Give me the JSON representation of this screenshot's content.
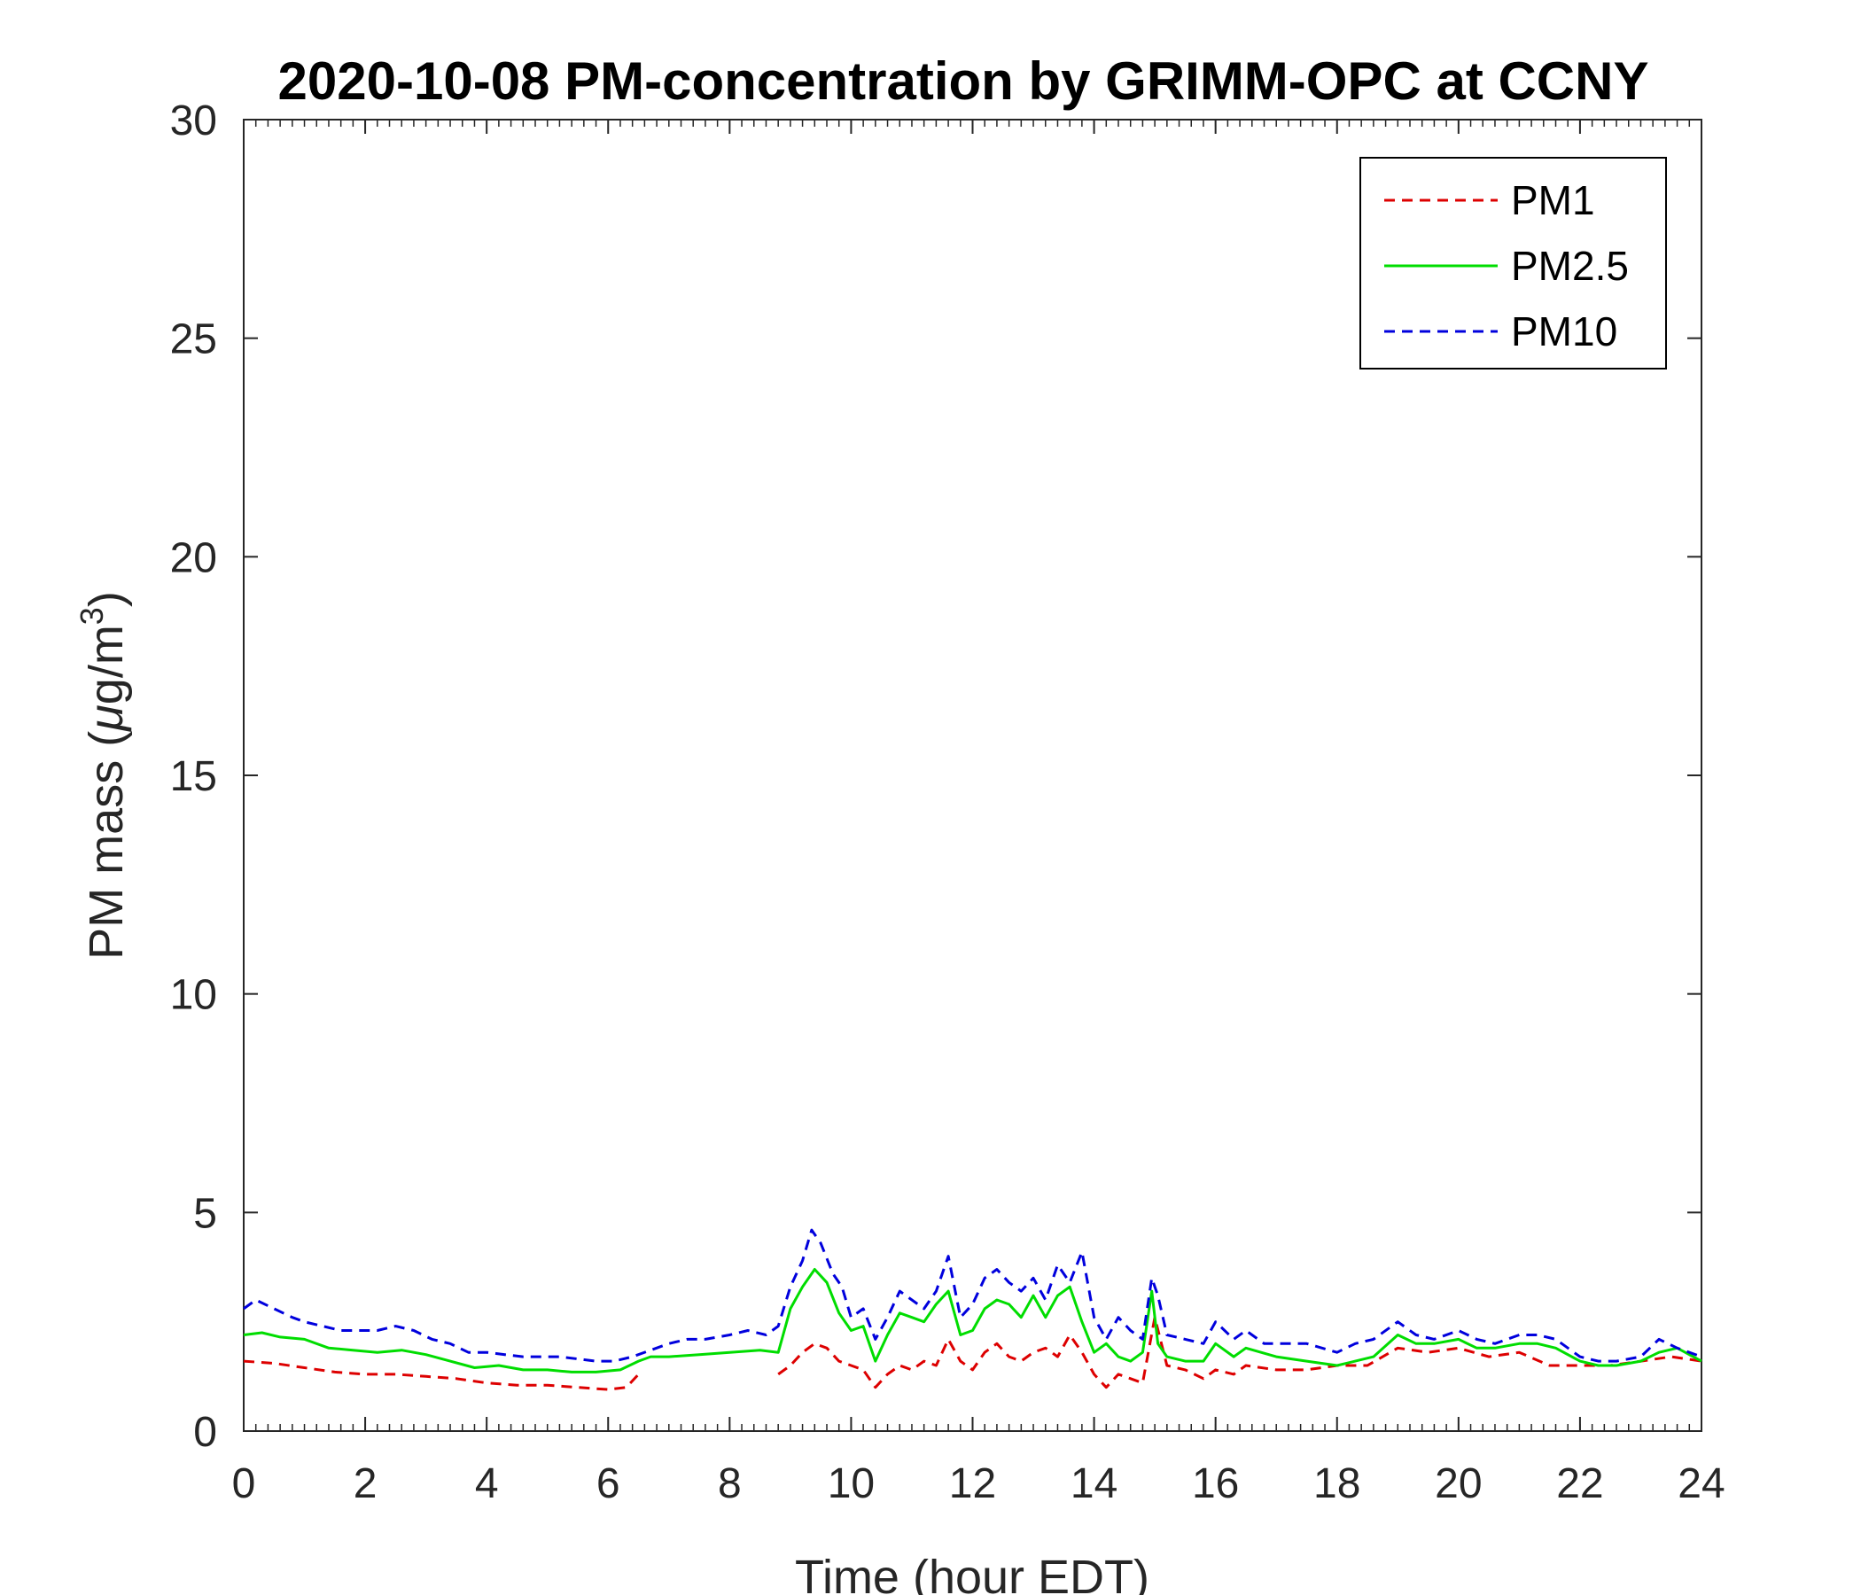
{
  "chart_data": {
    "type": "line",
    "title": "2020-10-08 PM-concentration by GRIMM-OPC at CCNY",
    "xlabel": "Time (hour EDT)",
    "ylabel": "PM mass (μg/m³)",
    "ylabel_parts": {
      "before": "PM mass (",
      "greek": "μ",
      "middle": "g/m",
      "sup": "3",
      "after": ")"
    },
    "xlim": [
      0,
      24
    ],
    "ylim": [
      0,
      30
    ],
    "x_ticks": [
      "0",
      "2",
      "4",
      "6",
      "8",
      "10",
      "12",
      "14",
      "16",
      "18",
      "20",
      "22",
      "24"
    ],
    "y_ticks": [
      "0",
      "5",
      "10",
      "15",
      "20",
      "25",
      "30"
    ],
    "legend_position": "top-right",
    "grid": false,
    "series": [
      {
        "name": "PM1",
        "color": "#dd0000",
        "style": "dashed",
        "segments": [
          {
            "x": [
              0,
              0.5,
              1,
              1.5,
              2,
              2.5,
              3,
              3.5,
              4,
              4.5,
              5,
              5.5,
              6,
              6.3,
              6.5
            ],
            "y": [
              1.6,
              1.55,
              1.45,
              1.35,
              1.3,
              1.3,
              1.25,
              1.2,
              1.1,
              1.05,
              1.05,
              1.0,
              0.95,
              1.0,
              1.3
            ]
          },
          {
            "x": [
              8.8,
              9.0,
              9.2,
              9.4,
              9.6,
              9.8,
              10.0,
              10.2,
              10.4,
              10.6,
              10.8,
              11.0,
              11.2,
              11.4,
              11.6,
              11.8,
              12.0,
              12.2,
              12.4,
              12.6,
              12.8,
              13.0,
              13.2,
              13.4,
              13.6,
              13.8,
              14.0,
              14.2,
              14.4,
              14.6,
              14.8,
              15.0,
              15.2,
              15.5,
              15.8,
              16.0,
              16.3,
              16.5,
              17.0,
              17.5,
              18.0,
              18.5,
              19.0,
              19.5,
              20.0,
              20.5,
              21.0,
              21.5,
              22.0,
              22.5,
              23.0,
              23.5,
              24.0
            ],
            "y": [
              1.3,
              1.5,
              1.8,
              2.0,
              1.9,
              1.6,
              1.5,
              1.4,
              1.0,
              1.3,
              1.5,
              1.4,
              1.6,
              1.5,
              2.1,
              1.6,
              1.4,
              1.8,
              2.0,
              1.7,
              1.6,
              1.8,
              1.9,
              1.7,
              2.2,
              1.8,
              1.3,
              1.0,
              1.3,
              1.2,
              1.1,
              2.6,
              1.5,
              1.4,
              1.2,
              1.4,
              1.3,
              1.5,
              1.4,
              1.4,
              1.5,
              1.5,
              1.9,
              1.8,
              1.9,
              1.7,
              1.8,
              1.5,
              1.5,
              1.5,
              1.6,
              1.7,
              1.6
            ]
          }
        ]
      },
      {
        "name": "PM2.5",
        "color": "#00dd00",
        "style": "solid",
        "segments": [
          {
            "x": [
              0,
              0.3,
              0.6,
              1.0,
              1.4,
              1.8,
              2.2,
              2.6,
              3.0,
              3.4,
              3.8,
              4.2,
              4.6,
              5.0,
              5.4,
              5.8,
              6.2,
              6.5,
              6.7,
              7.0,
              7.5,
              8.0,
              8.5,
              8.8,
              9.0,
              9.2,
              9.4,
              9.6,
              9.8,
              10.0,
              10.2,
              10.4,
              10.6,
              10.8,
              11.0,
              11.2,
              11.4,
              11.6,
              11.8,
              12.0,
              12.2,
              12.4,
              12.6,
              12.8,
              13.0,
              13.2,
              13.4,
              13.6,
              13.8,
              14.0,
              14.2,
              14.4,
              14.6,
              14.8,
              14.95,
              15.05,
              15.2,
              15.5,
              15.8,
              16.0,
              16.3,
              16.5,
              17.0,
              17.5,
              18.0,
              18.3,
              18.6,
              19.0,
              19.3,
              19.6,
              20.0,
              20.3,
              20.6,
              21.0,
              21.3,
              21.6,
              22.0,
              22.3,
              22.6,
              23.0,
              23.3,
              23.6,
              24.0
            ],
            "y": [
              2.2,
              2.25,
              2.15,
              2.1,
              1.9,
              1.85,
              1.8,
              1.85,
              1.75,
              1.6,
              1.45,
              1.5,
              1.4,
              1.4,
              1.35,
              1.35,
              1.4,
              1.6,
              1.7,
              1.7,
              1.75,
              1.8,
              1.85,
              1.8,
              2.8,
              3.3,
              3.7,
              3.4,
              2.7,
              2.3,
              2.4,
              1.6,
              2.2,
              2.7,
              2.6,
              2.5,
              2.9,
              3.2,
              2.2,
              2.3,
              2.8,
              3.0,
              2.9,
              2.6,
              3.1,
              2.6,
              3.1,
              3.3,
              2.5,
              1.8,
              2.0,
              1.7,
              1.6,
              1.8,
              3.2,
              2.0,
              1.7,
              1.6,
              1.6,
              2.0,
              1.7,
              1.9,
              1.7,
              1.6,
              1.5,
              1.6,
              1.7,
              2.2,
              2.0,
              2.0,
              2.1,
              1.9,
              1.9,
              2.0,
              2.0,
              1.9,
              1.6,
              1.5,
              1.5,
              1.6,
              1.8,
              1.9,
              1.6
            ]
          }
        ]
      },
      {
        "name": "PM10",
        "color": "#0000dd",
        "style": "dashed",
        "segments": [
          {
            "x": [
              0,
              0.2,
              0.5,
              0.8,
              1.0,
              1.3,
              1.6,
              1.9,
              2.2,
              2.5,
              2.8,
              3.1,
              3.4,
              3.7,
              4.0,
              4.3,
              4.6,
              4.9,
              5.2,
              5.5,
              5.8,
              6.1,
              6.4,
              6.7,
              7.0,
              7.3,
              7.6,
              8.0,
              8.3,
              8.6,
              8.8,
              9.0,
              9.2,
              9.35,
              9.5,
              9.7,
              9.85,
              10.0,
              10.2,
              10.4,
              10.6,
              10.8,
              11.0,
              11.2,
              11.4,
              11.6,
              11.8,
              12.0,
              12.2,
              12.4,
              12.6,
              12.8,
              13.0,
              13.2,
              13.4,
              13.6,
              13.8,
              14.0,
              14.2,
              14.4,
              14.6,
              14.8,
              14.95,
              15.05,
              15.2,
              15.5,
              15.8,
              16.0,
              16.3,
              16.5,
              16.8,
              17.0,
              17.5,
              18.0,
              18.3,
              18.6,
              19.0,
              19.3,
              19.6,
              20.0,
              20.3,
              20.6,
              21.0,
              21.3,
              21.6,
              22.0,
              22.3,
              22.6,
              23.0,
              23.3,
              23.6,
              24.0
            ],
            "y": [
              2.8,
              3.0,
              2.8,
              2.6,
              2.5,
              2.4,
              2.3,
              2.3,
              2.3,
              2.4,
              2.3,
              2.1,
              2.0,
              1.8,
              1.8,
              1.75,
              1.7,
              1.7,
              1.7,
              1.65,
              1.6,
              1.6,
              1.7,
              1.85,
              2.0,
              2.1,
              2.1,
              2.2,
              2.3,
              2.2,
              2.4,
              3.3,
              3.9,
              4.6,
              4.3,
              3.6,
              3.3,
              2.6,
              2.8,
              2.1,
              2.6,
              3.2,
              3.0,
              2.8,
              3.2,
              4.0,
              2.6,
              2.9,
              3.5,
              3.7,
              3.4,
              3.2,
              3.5,
              3.0,
              3.8,
              3.4,
              4.1,
              2.6,
              2.1,
              2.6,
              2.3,
              2.1,
              3.5,
              3.1,
              2.2,
              2.1,
              2.0,
              2.5,
              2.1,
              2.3,
              2.0,
              2.0,
              2.0,
              1.8,
              2.0,
              2.1,
              2.5,
              2.2,
              2.1,
              2.3,
              2.1,
              2.0,
              2.2,
              2.2,
              2.1,
              1.7,
              1.6,
              1.6,
              1.7,
              2.1,
              1.9,
              1.7
            ]
          }
        ]
      }
    ]
  }
}
